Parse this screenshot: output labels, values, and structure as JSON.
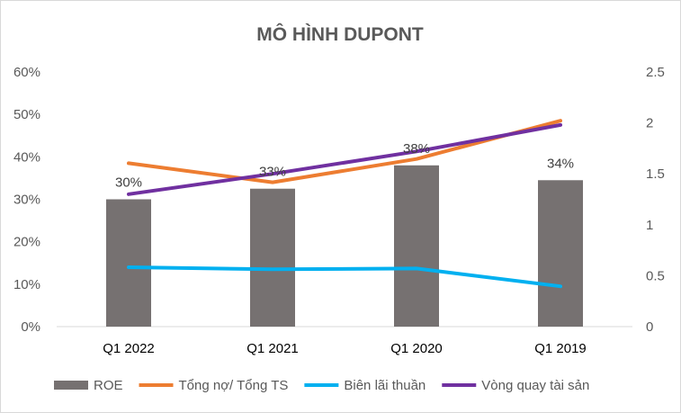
{
  "chart_data": {
    "type": "bar+line",
    "title": "MÔ HÌNH DUPONT",
    "categories": [
      "Q1 2022",
      "Q1 2021",
      "Q1 2020",
      "Q1 2019"
    ],
    "y_left": {
      "min": 0,
      "max": 0.6,
      "step": 0.1,
      "tick_labels": [
        "0%",
        "10%",
        "20%",
        "30%",
        "40%",
        "50%",
        "60%"
      ]
    },
    "y_right": {
      "min": 0,
      "max": 2.5,
      "step": 0.5,
      "tick_labels": [
        "0",
        "0.5",
        "1",
        "1.5",
        "2",
        "2.5"
      ]
    },
    "series": [
      {
        "name": "ROE",
        "type": "bar",
        "axis": "left",
        "color": "#767171",
        "values": [
          0.3,
          0.325,
          0.38,
          0.345
        ],
        "data_labels": [
          "30%",
          "33%",
          "38%",
          "34%"
        ]
      },
      {
        "name": "Tổng nợ/ Tổng TS",
        "type": "line",
        "axis": "left",
        "color": "#ED7D31",
        "values": [
          0.385,
          0.34,
          0.395,
          0.485
        ]
      },
      {
        "name": "Biên lãi thuần",
        "type": "line",
        "axis": "left",
        "color": "#00B0F0",
        "values": [
          0.14,
          0.135,
          0.137,
          0.095
        ]
      },
      {
        "name": "Vòng quay tài sản",
        "type": "line",
        "axis": "right",
        "color": "#7030A0",
        "values": [
          1.3,
          1.5,
          1.72,
          1.98
        ]
      }
    ],
    "grid": false,
    "legend_position": "bottom"
  }
}
